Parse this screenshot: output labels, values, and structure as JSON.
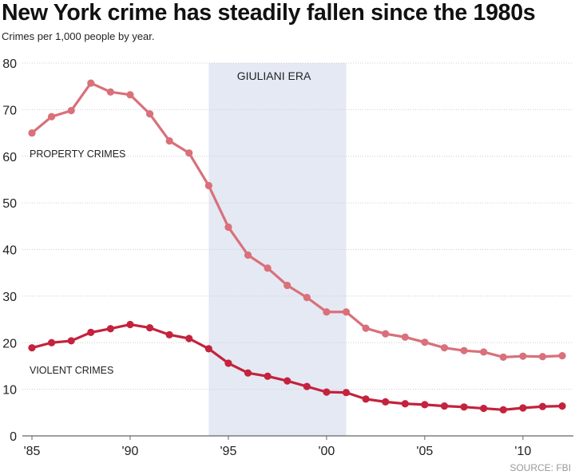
{
  "title": "New York crime has steadily fallen since the 1980s",
  "subtitle": "Crimes per 1,000 people by year.",
  "source": "SOURCE: FBI",
  "chart_data": {
    "type": "line",
    "x": [
      1985,
      1986,
      1987,
      1988,
      1989,
      1990,
      1991,
      1992,
      1993,
      1994,
      1995,
      1996,
      1997,
      1998,
      1999,
      2000,
      2001,
      2002,
      2003,
      2004,
      2005,
      2006,
      2007,
      2008,
      2009,
      2010,
      2011,
      2012
    ],
    "series": [
      {
        "name": "PROPERTY CRIMES",
        "color": "#d9707a",
        "values": [
          65.0,
          68.5,
          69.8,
          75.7,
          73.8,
          73.2,
          69.1,
          63.3,
          60.7,
          53.7,
          44.8,
          38.8,
          36.0,
          32.3,
          29.7,
          26.6,
          26.6,
          23.1,
          21.9,
          21.2,
          20.1,
          18.9,
          18.3,
          18.0,
          16.9,
          17.1,
          17.0,
          17.2
        ]
      },
      {
        "name": "VIOLENT CRIMES",
        "color": "#c4223d",
        "values": [
          18.9,
          20.0,
          20.4,
          22.2,
          23.0,
          23.9,
          23.2,
          21.7,
          20.9,
          18.7,
          15.6,
          13.5,
          12.8,
          11.8,
          10.6,
          9.4,
          9.3,
          7.9,
          7.3,
          6.9,
          6.7,
          6.4,
          6.2,
          5.9,
          5.6,
          6.0,
          6.3,
          6.4
        ]
      }
    ],
    "xticks": [
      "'85",
      "'90",
      "'95",
      "'00",
      "'05",
      "'10"
    ],
    "xtick_years": [
      1985,
      1990,
      1995,
      2000,
      2005,
      2010
    ],
    "yticks": [
      "0",
      "10",
      "20",
      "30",
      "40",
      "50",
      "60",
      "70",
      "80"
    ],
    "ylim": [
      0,
      80
    ],
    "grid": true,
    "highlight": {
      "label": "GIULIANI ERA",
      "start": 1994,
      "end": 2001,
      "color": "#e4e9f4"
    }
  }
}
